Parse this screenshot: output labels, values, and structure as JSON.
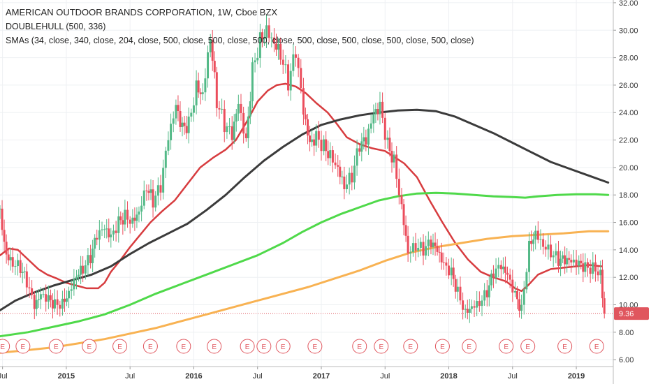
{
  "legend": {
    "title": "AMERICAN OUTDOOR BRANDS CORPORATION, 1W, Cboe BZX",
    "study1": "DOUBLEHULL (500, 336)",
    "study2": "SMAs (34, close, 340, close, 204, close, 500, close, 500, close, 500, close, 500, close, 500, close, 500, close, 500, close)"
  },
  "price_label": "9.36",
  "chart_data": {
    "type": "line",
    "title": "AMERICAN OUTDOOR BRANDS CORPORATION, 1W, Cboe BZX",
    "xlabel": "",
    "ylabel": "",
    "ylim": [
      5.5,
      32.2
    ],
    "y_ticks": [
      "32.00",
      "30.00",
      "28.00",
      "26.00",
      "24.00",
      "22.00",
      "20.00",
      "18.00",
      "16.00",
      "14.00",
      "12.00",
      "10.00",
      "8.00",
      "6.00"
    ],
    "y_tick_values": [
      32,
      30,
      28,
      26,
      24,
      22,
      20,
      18,
      16,
      14,
      12,
      10,
      8,
      6
    ],
    "x_range": [
      2014.48,
      2019.29
    ],
    "x_ticks": [
      {
        "label": "Jul",
        "t": 2014.5,
        "bold": false
      },
      {
        "label": "2015",
        "t": 2015.0,
        "bold": true
      },
      {
        "label": "Jul",
        "t": 2015.5,
        "bold": false
      },
      {
        "label": "2016",
        "t": 2016.0,
        "bold": true
      },
      {
        "label": "Jul",
        "t": 2016.5,
        "bold": false
      },
      {
        "label": "2017",
        "t": 2017.0,
        "bold": true
      },
      {
        "label": "Jul",
        "t": 2017.5,
        "bold": false
      },
      {
        "label": "2018",
        "t": 2018.0,
        "bold": true
      },
      {
        "label": "Jul",
        "t": 2018.5,
        "bold": false
      },
      {
        "label": "2019",
        "t": 2019.0,
        "bold": true
      }
    ],
    "last_price": 9.36,
    "ohlc": [
      [
        2014.48,
        17.0
      ],
      [
        2014.53,
        14.0
      ],
      [
        2014.58,
        13.3
      ],
      [
        2014.64,
        12.8
      ],
      [
        2014.69,
        11.5
      ],
      [
        2014.75,
        9.6
      ],
      [
        2014.8,
        10.4
      ],
      [
        2014.86,
        10.2
      ],
      [
        2014.91,
        10.0
      ],
      [
        2014.97,
        10.3
      ],
      [
        2015.02,
        11.2
      ],
      [
        2015.08,
        12.5
      ],
      [
        2015.13,
        12.8
      ],
      [
        2015.19,
        13.4
      ],
      [
        2015.24,
        14.8
      ],
      [
        2015.3,
        15.2
      ],
      [
        2015.35,
        14.6
      ],
      [
        2015.41,
        15.9
      ],
      [
        2015.46,
        16.6
      ],
      [
        2015.52,
        16.4
      ],
      [
        2015.57,
        17.2
      ],
      [
        2015.63,
        18.9
      ],
      [
        2015.68,
        17.6
      ],
      [
        2015.74,
        18.4
      ],
      [
        2015.8,
        21.8
      ],
      [
        2015.86,
        24.0
      ],
      [
        2015.91,
        22.6
      ],
      [
        2015.96,
        23.2
      ],
      [
        2016.02,
        26.2
      ],
      [
        2016.07,
        25.8
      ],
      [
        2016.13,
        30.0
      ],
      [
        2016.18,
        25.0
      ],
      [
        2016.24,
        23.0
      ],
      [
        2016.3,
        22.0
      ],
      [
        2016.35,
        24.2
      ],
      [
        2016.41,
        21.5
      ],
      [
        2016.46,
        27.0
      ],
      [
        2016.52,
        29.5
      ],
      [
        2016.57,
        30.5
      ],
      [
        2016.63,
        29.6
      ],
      [
        2016.68,
        28.6
      ],
      [
        2016.74,
        26.2
      ],
      [
        2016.8,
        28.2
      ],
      [
        2016.86,
        23.6
      ],
      [
        2016.91,
        21.3
      ],
      [
        2016.96,
        22.0
      ],
      [
        2017.02,
        21.6
      ],
      [
        2017.07,
        21.2
      ],
      [
        2017.13,
        20.4
      ],
      [
        2017.18,
        19.0
      ],
      [
        2017.24,
        19.5
      ],
      [
        2017.3,
        21.5
      ],
      [
        2017.35,
        21.6
      ],
      [
        2017.41,
        23.4
      ],
      [
        2017.46,
        24.1
      ],
      [
        2017.52,
        21.6
      ],
      [
        2017.57,
        20.7
      ],
      [
        2017.63,
        17.5
      ],
      [
        2017.68,
        14.2
      ],
      [
        2017.74,
        14.5
      ],
      [
        2017.8,
        14.0
      ],
      [
        2017.86,
        14.3
      ],
      [
        2017.91,
        13.6
      ],
      [
        2017.96,
        12.6
      ],
      [
        2018.02,
        12.2
      ],
      [
        2018.07,
        11.0
      ],
      [
        2018.13,
        9.7
      ],
      [
        2018.18,
        10.2
      ],
      [
        2018.24,
        10.4
      ],
      [
        2018.3,
        11.0
      ],
      [
        2018.35,
        12.2
      ],
      [
        2018.41,
        12.5
      ],
      [
        2018.46,
        11.8
      ],
      [
        2018.52,
        10.5
      ],
      [
        2018.57,
        9.6
      ],
      [
        2018.63,
        14.5
      ],
      [
        2018.68,
        15.6
      ],
      [
        2018.74,
        14.7
      ],
      [
        2018.8,
        14.0
      ],
      [
        2018.86,
        13.2
      ],
      [
        2018.91,
        13.0
      ],
      [
        2018.96,
        12.8
      ],
      [
        2019.02,
        12.7
      ],
      [
        2019.07,
        12.6
      ],
      [
        2019.13,
        12.8
      ],
      [
        2019.19,
        12.6
      ],
      [
        2019.22,
        9.36
      ]
    ],
    "series": [
      {
        "name": "",
        "color": "#d73c3f",
        "width": 2.5,
        "points": [
          [
            2014.48,
            13.6
          ],
          [
            2014.55,
            14.1
          ],
          [
            2014.62,
            14.0
          ],
          [
            2014.7,
            13.3
          ],
          [
            2014.78,
            12.6
          ],
          [
            2014.85,
            12.2
          ],
          [
            2014.93,
            11.9
          ],
          [
            2015.0,
            11.6
          ],
          [
            2015.08,
            11.4
          ],
          [
            2015.16,
            11.2
          ],
          [
            2015.25,
            11.2
          ],
          [
            2015.3,
            11.6
          ],
          [
            2015.35,
            12.4
          ],
          [
            2015.42,
            13.2
          ],
          [
            2015.5,
            14.2
          ],
          [
            2015.58,
            15.1
          ],
          [
            2015.66,
            16.0
          ],
          [
            2015.75,
            16.8
          ],
          [
            2015.85,
            17.6
          ],
          [
            2015.95,
            18.8
          ],
          [
            2016.05,
            20.0
          ],
          [
            2016.15,
            20.7
          ],
          [
            2016.25,
            21.3
          ],
          [
            2016.33,
            22.0
          ],
          [
            2016.42,
            23.4
          ],
          [
            2016.5,
            24.8
          ],
          [
            2016.58,
            25.6
          ],
          [
            2016.65,
            26.0
          ],
          [
            2016.72,
            26.1
          ],
          [
            2016.8,
            25.9
          ],
          [
            2016.88,
            25.4
          ],
          [
            2016.96,
            24.7
          ],
          [
            2017.05,
            24.0
          ],
          [
            2017.12,
            23.2
          ],
          [
            2017.2,
            22.2
          ],
          [
            2017.3,
            21.7
          ],
          [
            2017.4,
            21.4
          ],
          [
            2017.5,
            21.2
          ],
          [
            2017.55,
            20.9
          ],
          [
            2017.65,
            20.3
          ],
          [
            2017.75,
            19.3
          ],
          [
            2017.85,
            17.6
          ],
          [
            2017.95,
            16.0
          ],
          [
            2018.05,
            14.5
          ],
          [
            2018.15,
            13.3
          ],
          [
            2018.25,
            12.4
          ],
          [
            2018.35,
            12.0
          ],
          [
            2018.45,
            11.7
          ],
          [
            2018.52,
            11.2
          ],
          [
            2018.57,
            11.0
          ],
          [
            2018.62,
            11.4
          ],
          [
            2018.7,
            12.2
          ],
          [
            2018.8,
            12.6
          ],
          [
            2018.9,
            12.7
          ],
          [
            2019.0,
            12.8
          ],
          [
            2019.1,
            12.9
          ],
          [
            2019.2,
            12.8
          ]
        ]
      },
      {
        "name": "",
        "color": "#3b3b3b",
        "width": 3,
        "points": [
          [
            2014.48,
            9.6
          ],
          [
            2014.6,
            10.3
          ],
          [
            2014.75,
            10.9
          ],
          [
            2014.9,
            11.4
          ],
          [
            2015.05,
            11.8
          ],
          [
            2015.2,
            12.2
          ],
          [
            2015.35,
            12.8
          ],
          [
            2015.5,
            13.7
          ],
          [
            2015.65,
            14.5
          ],
          [
            2015.8,
            15.2
          ],
          [
            2015.95,
            15.9
          ],
          [
            2016.1,
            16.9
          ],
          [
            2016.25,
            18.0
          ],
          [
            2016.4,
            19.3
          ],
          [
            2016.55,
            20.5
          ],
          [
            2016.7,
            21.5
          ],
          [
            2016.85,
            22.4
          ],
          [
            2017.0,
            23.1
          ],
          [
            2017.15,
            23.5
          ],
          [
            2017.3,
            23.8
          ],
          [
            2017.45,
            24.0
          ],
          [
            2017.6,
            24.15
          ],
          [
            2017.75,
            24.2
          ],
          [
            2017.9,
            24.1
          ],
          [
            2018.05,
            23.7
          ],
          [
            2018.2,
            23.1
          ],
          [
            2018.35,
            22.5
          ],
          [
            2018.5,
            21.8
          ],
          [
            2018.65,
            21.1
          ],
          [
            2018.8,
            20.4
          ],
          [
            2018.95,
            19.9
          ],
          [
            2019.1,
            19.4
          ],
          [
            2019.25,
            18.9
          ]
        ]
      },
      {
        "name": "",
        "color": "#4fd94a",
        "width": 3,
        "points": [
          [
            2014.48,
            7.7
          ],
          [
            2014.7,
            8.0
          ],
          [
            2014.9,
            8.4
          ],
          [
            2015.1,
            8.8
          ],
          [
            2015.3,
            9.3
          ],
          [
            2015.5,
            10.0
          ],
          [
            2015.7,
            10.8
          ],
          [
            2015.9,
            11.5
          ],
          [
            2016.1,
            12.2
          ],
          [
            2016.3,
            12.9
          ],
          [
            2016.5,
            13.6
          ],
          [
            2016.7,
            14.5
          ],
          [
            2016.85,
            15.3
          ],
          [
            2017.0,
            16.0
          ],
          [
            2017.15,
            16.6
          ],
          [
            2017.3,
            17.1
          ],
          [
            2017.45,
            17.6
          ],
          [
            2017.6,
            17.9
          ],
          [
            2017.75,
            18.1
          ],
          [
            2017.9,
            18.15
          ],
          [
            2018.05,
            18.1
          ],
          [
            2018.2,
            18.0
          ],
          [
            2018.35,
            17.9
          ],
          [
            2018.5,
            17.85
          ],
          [
            2018.6,
            17.8
          ],
          [
            2018.7,
            17.9
          ],
          [
            2018.85,
            18.0
          ],
          [
            2019.0,
            18.05
          ],
          [
            2019.15,
            18.05
          ],
          [
            2019.25,
            18.0
          ]
        ]
      },
      {
        "name": "",
        "color": "#f8b252",
        "width": 3,
        "points": [
          [
            2014.48,
            6.5
          ],
          [
            2014.7,
            6.7
          ],
          [
            2014.9,
            6.9
          ],
          [
            2015.1,
            7.2
          ],
          [
            2015.3,
            7.5
          ],
          [
            2015.5,
            7.9
          ],
          [
            2015.7,
            8.3
          ],
          [
            2015.9,
            8.8
          ],
          [
            2016.1,
            9.3
          ],
          [
            2016.3,
            9.8
          ],
          [
            2016.5,
            10.3
          ],
          [
            2016.7,
            10.8
          ],
          [
            2016.9,
            11.3
          ],
          [
            2017.1,
            11.9
          ],
          [
            2017.3,
            12.5
          ],
          [
            2017.5,
            13.2
          ],
          [
            2017.7,
            13.8
          ],
          [
            2017.9,
            14.2
          ],
          [
            2018.1,
            14.5
          ],
          [
            2018.3,
            14.8
          ],
          [
            2018.5,
            15.0
          ],
          [
            2018.7,
            15.1
          ],
          [
            2018.9,
            15.2
          ],
          [
            2019.1,
            15.35
          ],
          [
            2019.25,
            15.35
          ]
        ]
      }
    ],
    "earnings_t": [
      2014.5,
      2014.66,
      2014.92,
      2015.18,
      2015.42,
      2015.66,
      2015.92,
      2016.16,
      2016.42,
      2016.55,
      2016.7,
      2016.95,
      2017.3,
      2017.47,
      2017.7,
      2017.95,
      2018.16,
      2018.45,
      2018.62,
      2018.91,
      2019.16
    ]
  }
}
